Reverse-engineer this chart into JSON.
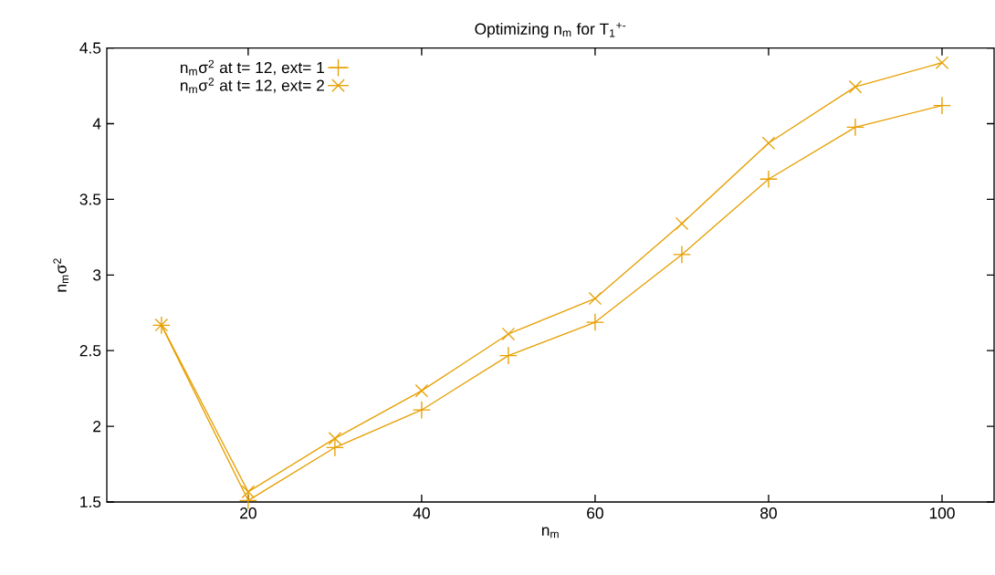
{
  "chart_data": {
    "type": "line",
    "title": "Optimizing n$_{m}$ for T$_{1}$$^{+-}$",
    "xlabel": "n$_{m}$",
    "ylabel": "n$_{m}$σ$^{2}$",
    "x": [
      10,
      20,
      30,
      40,
      50,
      60,
      70,
      80,
      90,
      100
    ],
    "series": [
      {
        "name": "n$_{m}$σ$^{2}$ at t= 12, ext= 1",
        "color": "#e69f00",
        "marker": "plus",
        "values": [
          2.668,
          1.51,
          1.86,
          2.108,
          2.467,
          2.688,
          3.135,
          3.634,
          3.977,
          4.12
        ]
      },
      {
        "name": "n$_{m}$σ$^{2}$ at t= 12, ext= 2",
        "color": "#e69f00",
        "marker": "cross",
        "values": [
          2.67,
          1.567,
          1.92,
          2.235,
          2.61,
          2.845,
          3.34,
          3.872,
          4.244,
          4.403
        ]
      }
    ],
    "xlim": [
      3.7,
      106
    ],
    "ylim": [
      1.5,
      4.5
    ],
    "xticks": [
      20,
      40,
      60,
      80,
      100
    ],
    "yticks": [
      1.5,
      2,
      2.5,
      3,
      3.5,
      4,
      4.5
    ],
    "legend": "top left",
    "grid": false,
    "line_style": "solid"
  }
}
